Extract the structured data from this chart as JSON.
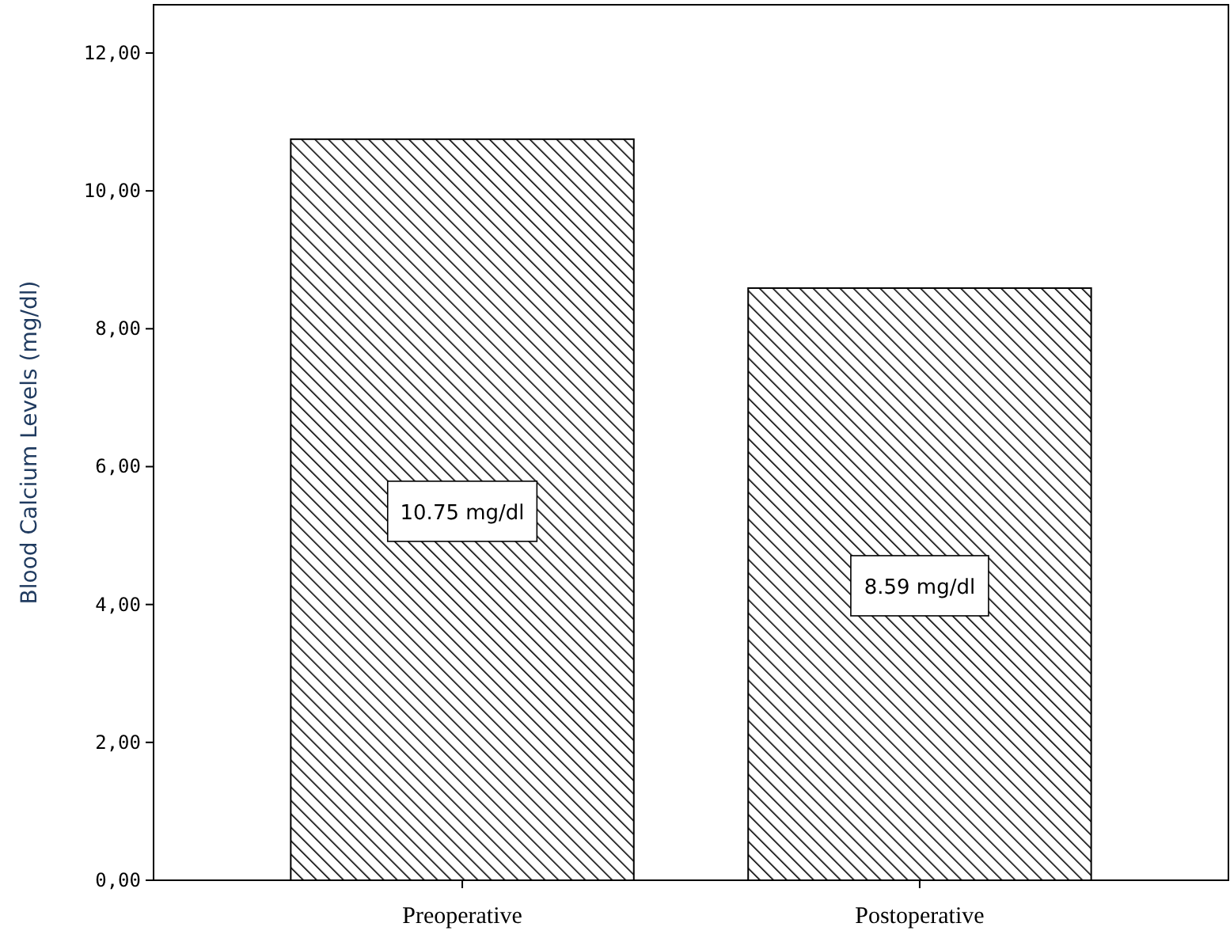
{
  "chart_data": {
    "type": "bar",
    "ylabel": "Blood Calcium Levels (mg/dl)",
    "categories": [
      "Preoperative",
      "Postoperative"
    ],
    "values": [
      10.75,
      8.59
    ],
    "color": "#000000",
    "value_labels": [
      "10.75 mg/dl",
      "8.59 mg/dl"
    ],
    "ylim": [
      0,
      12.7
    ],
    "yticks": [
      {
        "value": 0,
        "label": "0,00"
      },
      {
        "value": 2,
        "label": "2,00"
      },
      {
        "value": 4,
        "label": "4,00"
      },
      {
        "value": 6,
        "label": "6,00"
      },
      {
        "value": 8,
        "label": "8,00"
      },
      {
        "value": 10,
        "label": "10,00"
      },
      {
        "value": 12,
        "label": "12,00"
      }
    ],
    "grid": false
  }
}
